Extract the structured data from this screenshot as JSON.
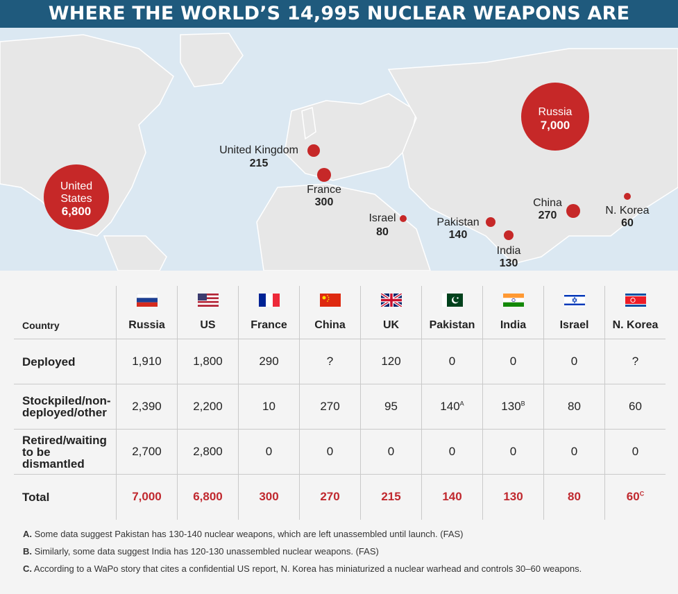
{
  "title": "WHERE THE WORLD’S 14,995 NUCLEAR WEAPONS ARE",
  "colors": {
    "header_bg": "#1f5a7d",
    "accent_red": "#c62828",
    "water": "#dbe8f2",
    "land": "#e6e6e6"
  },
  "map_labels": {
    "russia": {
      "name": "Russia",
      "value": "7,000"
    },
    "us": {
      "name_line1": "United",
      "name_line2": "States",
      "value": "6,800"
    },
    "uk": {
      "name": "United Kingdom",
      "value": "215"
    },
    "france": {
      "name": "France",
      "value": "300"
    },
    "israel": {
      "name": "Israel",
      "value": "80"
    },
    "pakistan": {
      "name": "Pakistan",
      "value": "140"
    },
    "india": {
      "name": "India",
      "value": "130"
    },
    "china": {
      "name": "China",
      "value": "270"
    },
    "nkorea": {
      "name": "N. Korea",
      "value": "60"
    }
  },
  "chart_data": {
    "type": "table",
    "title": "WHERE THE WORLD’S 14,995 NUCLEAR WEAPONS ARE",
    "columns": [
      "Country",
      "Russia",
      "US",
      "France",
      "China",
      "UK",
      "Pakistan",
      "India",
      "Israel",
      "N. Korea"
    ],
    "rows": [
      {
        "label": "Deployed",
        "values": [
          "1,910",
          "1,800",
          "290",
          "?",
          "120",
          "0",
          "0",
          "0",
          "?"
        ]
      },
      {
        "label_line1": "Stockpiled/non-",
        "label_line2": "deployed/other",
        "values": [
          "2,390",
          "2,200",
          "10",
          "270",
          "95",
          "140",
          "130",
          "80",
          "60"
        ],
        "marks": [
          "",
          "",
          "",
          "",
          "",
          "A",
          "B",
          "",
          ""
        ]
      },
      {
        "label_line1": "Retired/waiting",
        "label_line2": "to be dismantled",
        "values": [
          "2,700",
          "2,800",
          "0",
          "0",
          "0",
          "0",
          "0",
          "0",
          "0"
        ]
      },
      {
        "label": "Total",
        "values": [
          "7,000",
          "6,800",
          "300",
          "270",
          "215",
          "140",
          "130",
          "80",
          "60"
        ],
        "marks": [
          "",
          "",
          "",
          "",
          "",
          "",
          "",
          "",
          "C"
        ]
      }
    ],
    "flags": [
      "russia-flag",
      "us-flag",
      "france-flag",
      "china-flag",
      "uk-flag",
      "pakistan-flag",
      "india-flag",
      "israel-flag",
      "nkorea-flag"
    ]
  },
  "notes": [
    {
      "letter": "A.",
      "text": "Some data suggest Pakistan has 130-140 nuclear weapons, which are left unassembled until launch. (FAS)"
    },
    {
      "letter": "B.",
      "text": "Similarly, some data suggest India has 120-130 unassembled nuclear weapons. (FAS)"
    },
    {
      "letter": "C.",
      "text": "According to a WaPo story that cites a confidential US report, N. Korea has miniaturized a nuclear warhead and controls 30–60 weapons."
    }
  ]
}
